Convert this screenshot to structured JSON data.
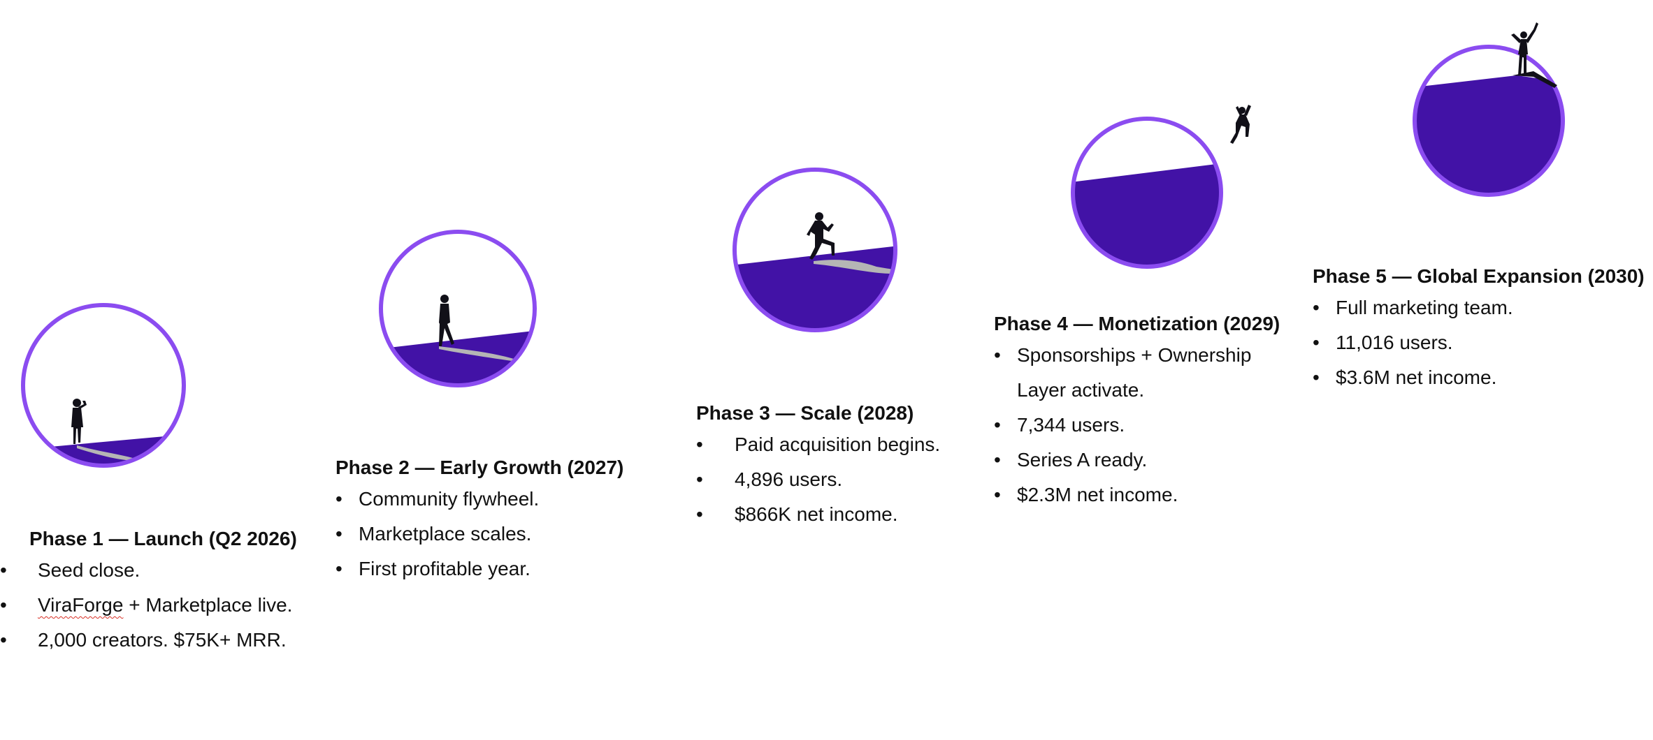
{
  "colors": {
    "ring": "#8b4cf0",
    "fill": "#4212a6",
    "silhouette": "#111018",
    "shadow": "#b5b5b5"
  },
  "phases": [
    {
      "id": "phase-1",
      "title": "Phase 1 — Launch (Q2 2026)",
      "bullets": [
        [
          "Seed close."
        ],
        [
          "ViraForge",
          " + Marketplace live."
        ],
        [
          "2,000 creators. $75K+ MRR."
        ]
      ],
      "icon": "standing-figure-icon"
    },
    {
      "id": "phase-2",
      "title": "Phase 2 — Early Growth (2027)",
      "bullets": [
        [
          "Community flywheel."
        ],
        [
          "Marketplace scales."
        ],
        [
          "First profitable year."
        ]
      ],
      "icon": "walking-figure-icon"
    },
    {
      "id": "phase-3",
      "title": "Phase 3 — Scale (2028)",
      "bullets": [
        [
          "Paid acquisition begins."
        ],
        [
          "4,896 users."
        ],
        [
          "$866K net income."
        ]
      ],
      "icon": "climbing-figure-icon"
    },
    {
      "id": "phase-4",
      "title": "Phase 4 — Monetization (2029)",
      "bullets": [
        [
          "Sponsorships + Ownership",
          "Layer activate."
        ],
        [
          "7,344 users."
        ],
        [
          "Series A ready."
        ],
        [
          "$2.3M net income."
        ]
      ],
      "icon": "jumping-figure-icon"
    },
    {
      "id": "phase-5",
      "title": "Phase 5 — Global Expansion (2030)",
      "bullets": [
        [
          "Full marketing team."
        ],
        [
          "11,016 users."
        ],
        [
          "$3.6M net income."
        ]
      ],
      "icon": "celebrating-figure-icon"
    }
  ],
  "bullet_symbol": "•"
}
